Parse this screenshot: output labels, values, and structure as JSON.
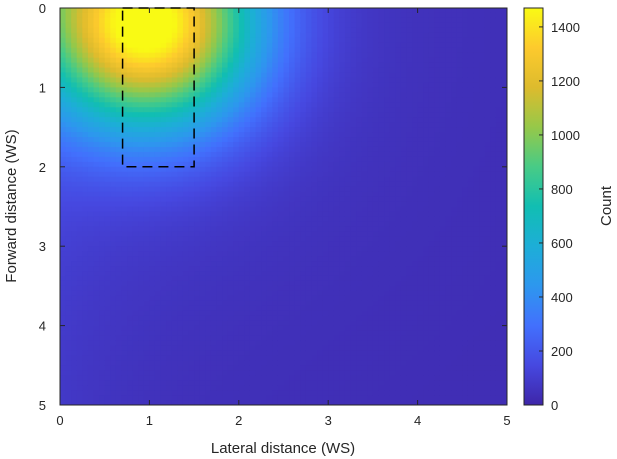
{
  "chart_data": {
    "type": "heatmap",
    "xlabel": "Lateral distance (WS)",
    "ylabel": "Forward distance (WS)",
    "xlim": [
      0,
      5
    ],
    "ylim": [
      0,
      5
    ],
    "y_direction": "reversed (0 at top)",
    "x_ticks": [
      "0",
      "1",
      "2",
      "3",
      "4",
      "5"
    ],
    "y_ticks": [
      "0",
      "1",
      "2",
      "3",
      "4",
      "5"
    ],
    "colormap": "parula",
    "colorbar": {
      "label": "Count",
      "range": [
        0,
        1470
      ],
      "ticks": [
        "0",
        "200",
        "400",
        "600",
        "800",
        "1000",
        "1200",
        "1400"
      ]
    },
    "peak": {
      "x": 1.0,
      "y": 0.2,
      "count": 1470
    },
    "count_at_far_corner": 30,
    "annotation_box": {
      "style": "dashed black rectangle",
      "x_range": [
        0.7,
        1.5
      ],
      "y_range": [
        0,
        2
      ]
    }
  }
}
